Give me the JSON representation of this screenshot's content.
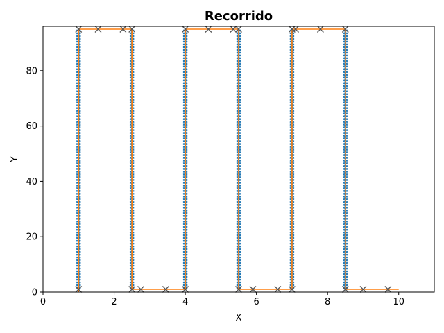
{
  "chart_data": {
    "type": "line",
    "title": "Recorrido",
    "xlabel": "X",
    "ylabel": "Y",
    "xlim": [
      0,
      11
    ],
    "ylim": [
      0,
      96
    ],
    "xticks": [
      0,
      2,
      4,
      6,
      8,
      10
    ],
    "yticks": [
      0,
      20,
      40,
      60,
      80
    ],
    "grid": false,
    "colors": {
      "points": "#1f77b4",
      "path": "#ff7f0e",
      "markers": "#555555"
    },
    "columns": [
      1.0,
      2.5,
      4.0,
      5.5,
      7.0,
      8.5
    ],
    "y_bottom": 1,
    "y_top": 95,
    "y_step": 1,
    "path_x": [
      1,
      1,
      2.5,
      2.5,
      4,
      4,
      5.5,
      5.5,
      7,
      7,
      8.5,
      8.5,
      10
    ],
    "path_y": [
      0,
      95,
      95,
      1,
      1,
      95,
      95,
      1,
      1,
      95,
      95,
      1,
      1
    ],
    "x_markers": [
      {
        "x": 1.0,
        "y": 1
      },
      {
        "x": 1.0,
        "y": 95
      },
      {
        "x": 1.55,
        "y": 95
      },
      {
        "x": 2.25,
        "y": 95
      },
      {
        "x": 2.5,
        "y": 95
      },
      {
        "x": 2.5,
        "y": 1
      },
      {
        "x": 2.75,
        "y": 1
      },
      {
        "x": 3.45,
        "y": 1
      },
      {
        "x": 4.0,
        "y": 1
      },
      {
        "x": 4.0,
        "y": 95
      },
      {
        "x": 4.65,
        "y": 95
      },
      {
        "x": 5.35,
        "y": 95
      },
      {
        "x": 5.5,
        "y": 95
      },
      {
        "x": 5.5,
        "y": 1
      },
      {
        "x": 5.9,
        "y": 1
      },
      {
        "x": 6.6,
        "y": 1
      },
      {
        "x": 7.0,
        "y": 1
      },
      {
        "x": 7.0,
        "y": 95
      },
      {
        "x": 7.1,
        "y": 95
      },
      {
        "x": 7.8,
        "y": 95
      },
      {
        "x": 8.5,
        "y": 95
      },
      {
        "x": 8.5,
        "y": 1
      },
      {
        "x": 9.0,
        "y": 1
      },
      {
        "x": 9.7,
        "y": 1
      }
    ]
  }
}
